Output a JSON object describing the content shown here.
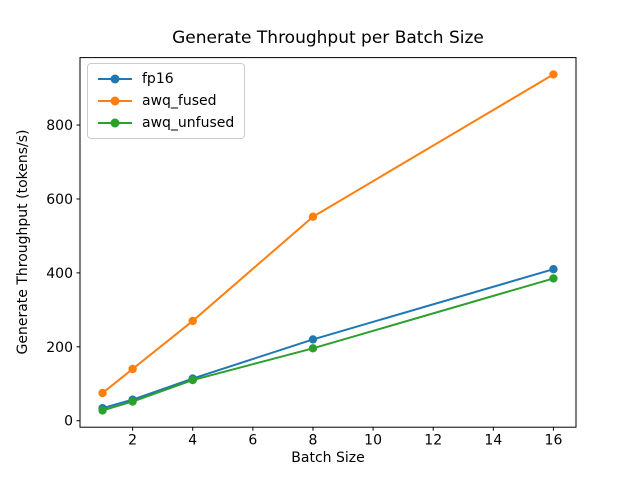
{
  "chart_data": {
    "type": "line",
    "title": "Generate Throughput per Batch Size",
    "xlabel": "Batch Size",
    "ylabel": "Generate Throughput (tokens/s)",
    "x": [
      1,
      2,
      4,
      8,
      16
    ],
    "series": [
      {
        "name": "fp16",
        "color": "#1f77b4",
        "values": [
          34,
          57,
          114,
          220,
          410
        ]
      },
      {
        "name": "awq_fused",
        "color": "#ff7f0e",
        "values": [
          75,
          140,
          270,
          552,
          937
        ]
      },
      {
        "name": "awq_unfused",
        "color": "#2ca02c",
        "values": [
          28,
          52,
          110,
          196,
          385
        ]
      }
    ],
    "xticks": [
      2,
      4,
      6,
      8,
      10,
      12,
      14,
      16
    ],
    "yticks": [
      0,
      200,
      400,
      600,
      800
    ],
    "xlim": [
      0.25,
      16.75
    ],
    "ylim": [
      -17.5,
      982.5
    ],
    "legend_position": "upper left",
    "grid": false,
    "marker": "circle",
    "line_style": "solid"
  }
}
